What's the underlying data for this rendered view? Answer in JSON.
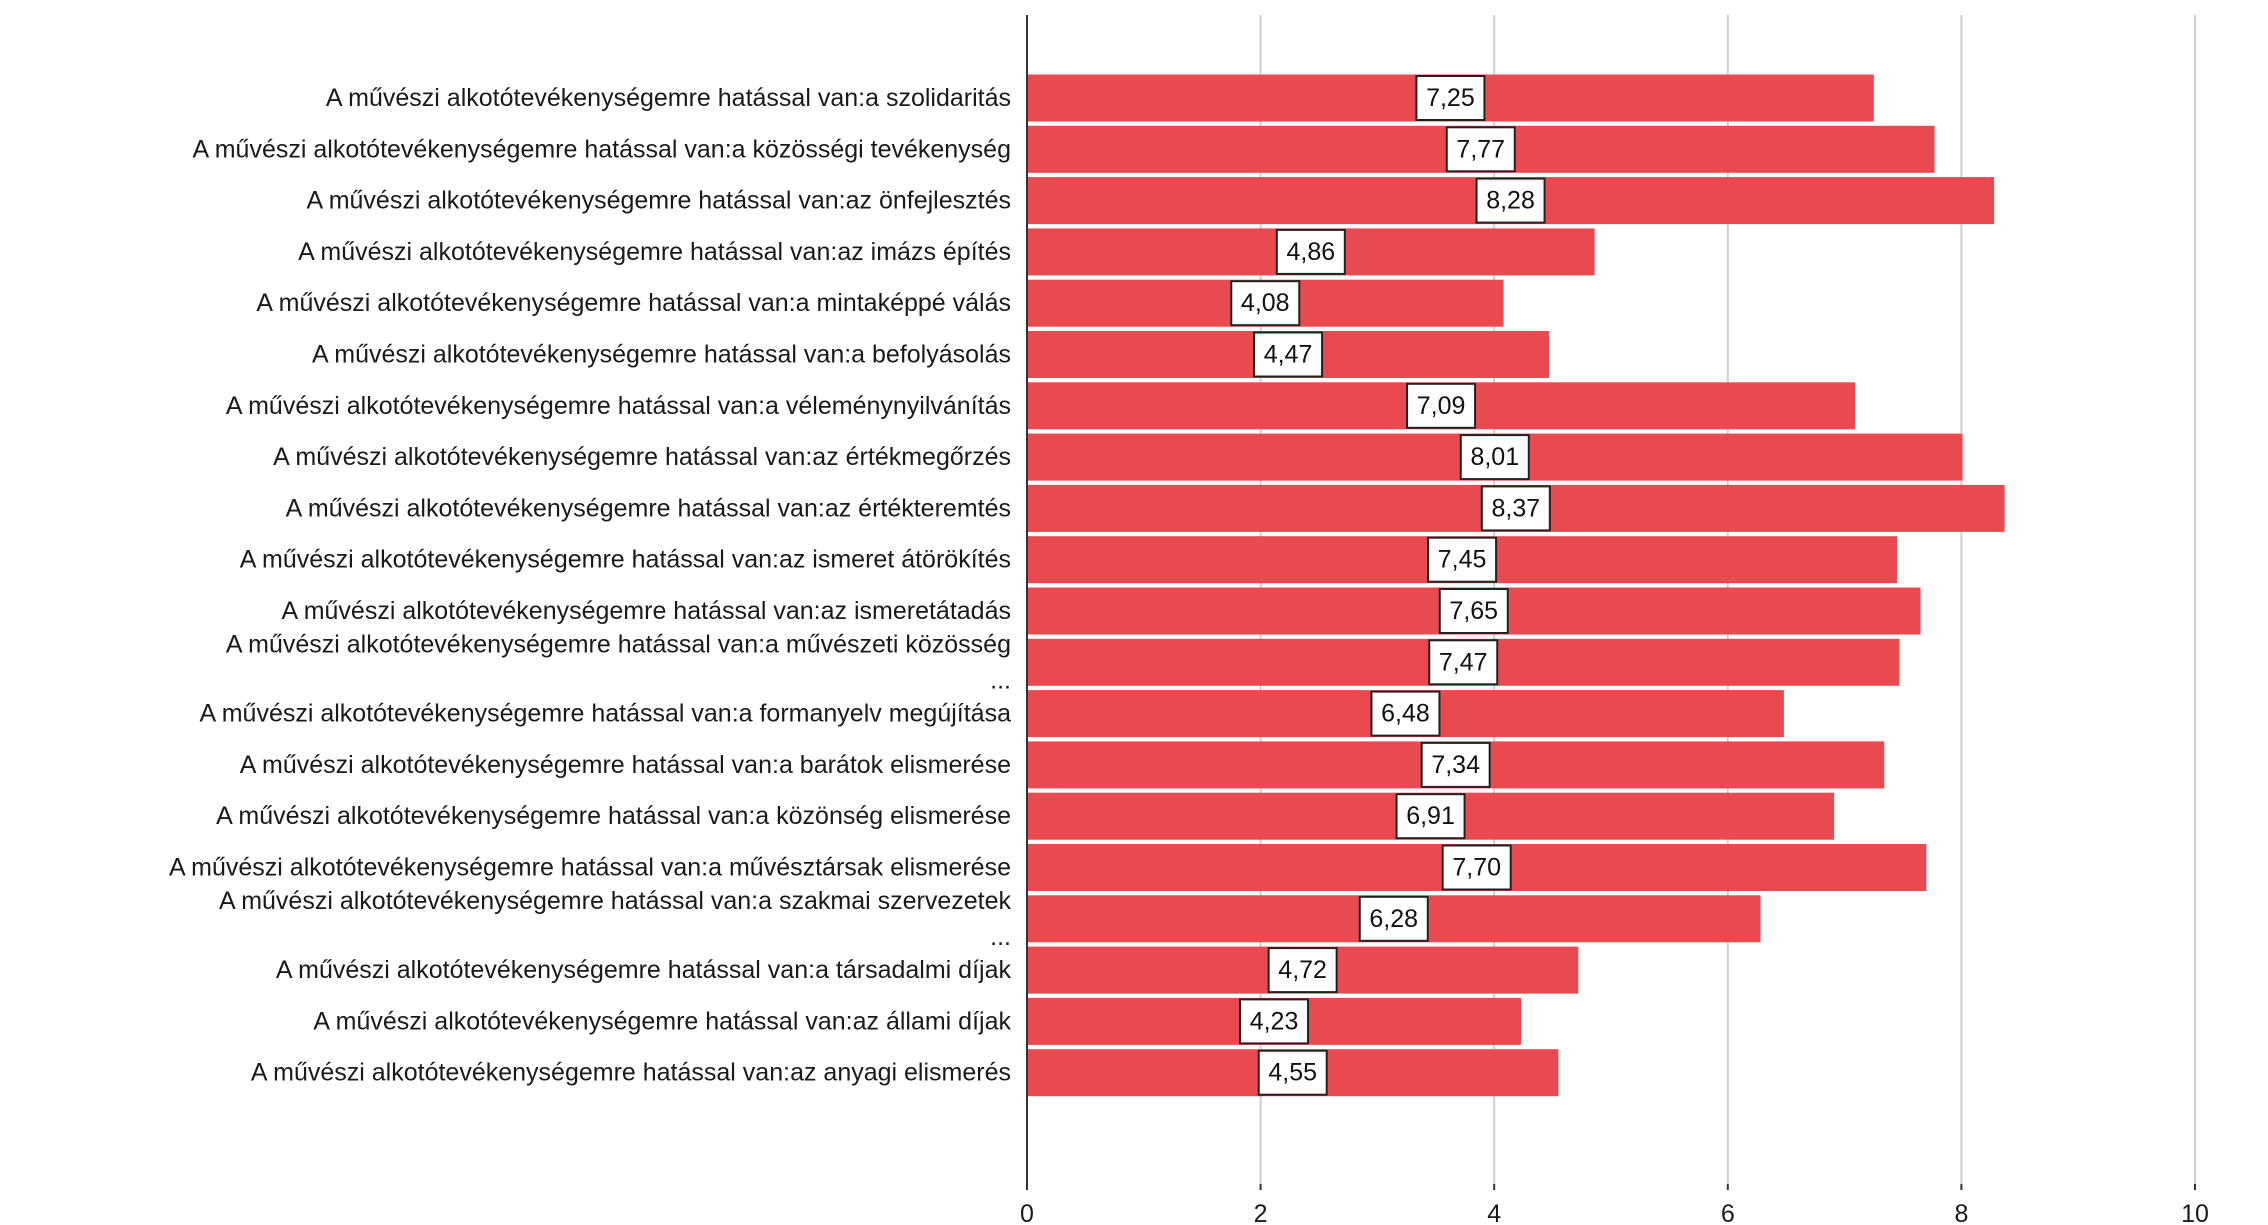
{
  "chart_data": {
    "type": "bar",
    "orientation": "horizontal",
    "categories": [
      [
        "A művészi alkotótevékenységemre hatással van:a szolidaritás"
      ],
      [
        "A művészi alkotótevékenységemre hatással van:a közösségi tevékenység"
      ],
      [
        "A művészi alkotótevékenységemre hatással van:az önfejlesztés"
      ],
      [
        "A művészi alkotótevékenységemre hatással van:az imázs építés"
      ],
      [
        "A művészi alkotótevékenységemre hatással van:a mintaképpé válás"
      ],
      [
        "A művészi alkotótevékenységemre hatással van:a befolyásolás"
      ],
      [
        "A művészi alkotótevékenységemre hatással van:a véleménynyilvánítás"
      ],
      [
        "A művészi alkotótevékenységemre hatással van:az értékmegőrzés"
      ],
      [
        "A művészi alkotótevékenységemre hatással van:az értékteremtés"
      ],
      [
        "A művészi alkotótevékenységemre hatással van:az ismeret átörökítés"
      ],
      [
        "A művészi alkotótevékenységemre hatással van:az ismeretátadás"
      ],
      [
        "A művészi alkotótevékenységemre hatással van:a művészeti közösség",
        "..."
      ],
      [
        "A művészi alkotótevékenységemre hatással van:a formanyelv megújítása"
      ],
      [
        "A művészi alkotótevékenységemre hatással van:a barátok elismerése"
      ],
      [
        "A művészi alkotótevékenységemre hatással van:a közönség elismerése"
      ],
      [
        "A művészi alkotótevékenységemre hatással van:a művésztársak elismerése"
      ],
      [
        "A művészi alkotótevékenységemre hatással van:a szakmai szervezetek",
        "..."
      ],
      [
        "A művészi alkotótevékenységemre hatással van:a társadalmi díjak"
      ],
      [
        "A művészi alkotótevékenységemre hatással van:az állami díjak"
      ],
      [
        "A művészi alkotótevékenységemre hatással van:az anyagi elismerés"
      ]
    ],
    "values": [
      7.25,
      7.77,
      8.28,
      4.86,
      4.08,
      4.47,
      7.09,
      8.01,
      8.37,
      7.45,
      7.65,
      7.47,
      6.48,
      7.34,
      6.91,
      7.7,
      6.28,
      4.72,
      4.23,
      4.55
    ],
    "value_labels": [
      "7,25",
      "7,77",
      "8,28",
      "4,86",
      "4,08",
      "4,47",
      "7,09",
      "8,01",
      "8,37",
      "7,45",
      "7,65",
      "7,47",
      "6,48",
      "7,34",
      "6,91",
      "7,70",
      "6,28",
      "4,72",
      "4,23",
      "4,55"
    ],
    "xlim": [
      0,
      10.5
    ],
    "xticks": [
      0,
      2,
      4,
      6,
      8,
      10
    ],
    "xtick_labels": [
      "0",
      "2",
      "4",
      "6",
      "8",
      "10"
    ],
    "grid": "vertical",
    "bar_color": "#e84a4f",
    "grid_color": "#cfcfcf"
  }
}
